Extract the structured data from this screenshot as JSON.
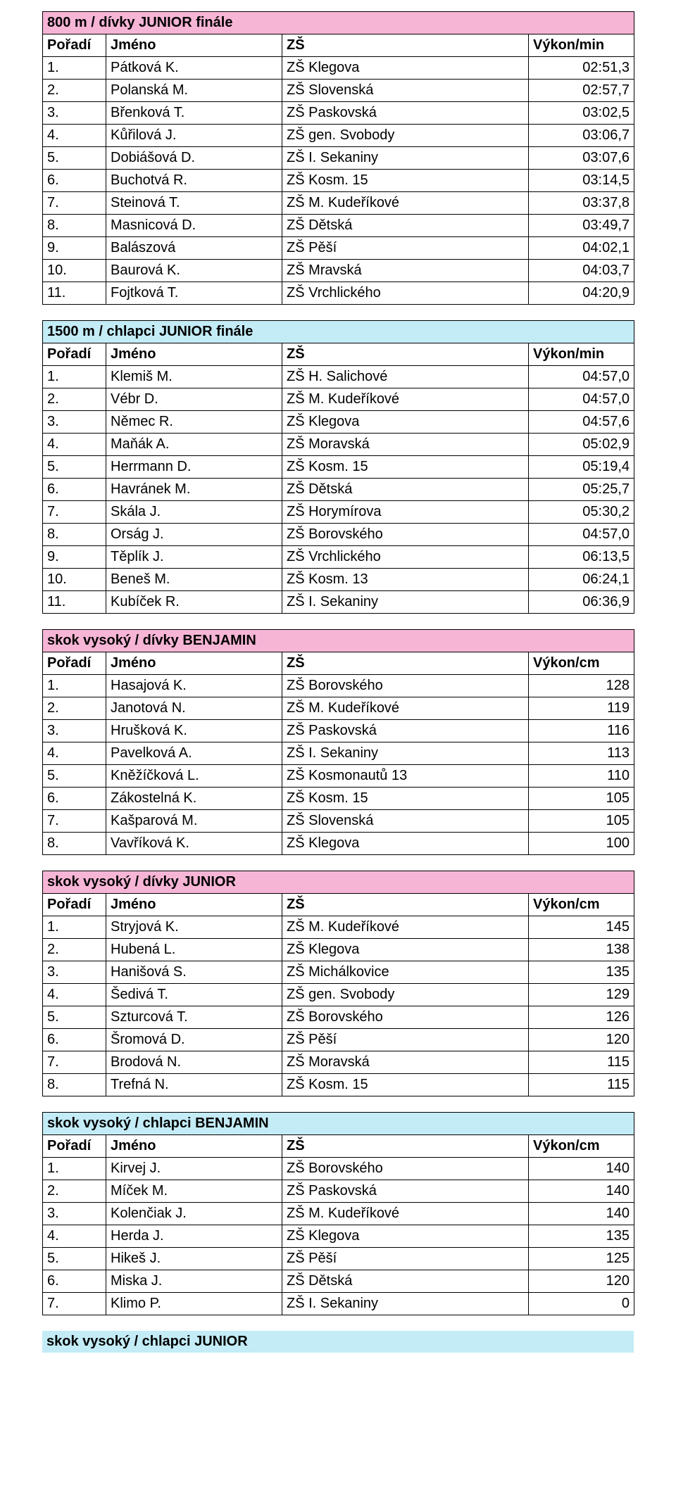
{
  "colors": {
    "pink": "#f7b5d6",
    "blue": "#c3ecf6",
    "white": "#ffffff",
    "black": "#000000"
  },
  "labels": {
    "rank": "Pořadí",
    "name": "Jméno",
    "school": "ZŠ",
    "perf_min": "Výkon/min",
    "perf_cm": "Výkon/cm"
  },
  "sections": [
    {
      "title": "800 m / dívky JUNIOR finále",
      "title_bg": "#f7b5d6",
      "perf_label": "Výkon/min",
      "rows": [
        {
          "r": "1.",
          "n": "Pátková K.",
          "s": "ZŠ Klegova",
          "p": "02:51,3"
        },
        {
          "r": "2.",
          "n": "Polanská M.",
          "s": "ZŠ Slovenská",
          "p": "02:57,7"
        },
        {
          "r": "3.",
          "n": "Břenková T.",
          "s": "ZŠ Paskovská",
          "p": "03:02,5"
        },
        {
          "r": "4.",
          "n": "Kůřilová J.",
          "s": "ZŠ gen. Svobody",
          "p": "03:06,7"
        },
        {
          "r": "5.",
          "n": "Dobiášová D.",
          "s": "ZŠ I. Sekaniny",
          "p": "03:07,6"
        },
        {
          "r": "6.",
          "n": "Buchotvá R.",
          "s": "ZŠ Kosm. 15",
          "p": "03:14,5"
        },
        {
          "r": "7.",
          "n": "Steinová T.",
          "s": "ZŠ M. Kudeříkové",
          "p": "03:37,8"
        },
        {
          "r": "8.",
          "n": "Masnicová D.",
          "s": "ZŠ Dětská",
          "p": "03:49,7"
        },
        {
          "r": "9.",
          "n": "Balászová",
          "s": "ZŠ Pěší",
          "p": "04:02,1"
        },
        {
          "r": "10.",
          "n": "Baurová K.",
          "s": "ZŠ Mravská",
          "p": "04:03,7"
        },
        {
          "r": "11.",
          "n": "Fojtková T.",
          "s": "ZŠ Vrchlického",
          "p": "04:20,9"
        }
      ]
    },
    {
      "title": "1500 m / chlapci JUNIOR finále",
      "title_bg": "#c3ecf6",
      "perf_label": "Výkon/min",
      "rows": [
        {
          "r": "1.",
          "n": "Klemiš M.",
          "s": "ZŠ H. Salichové",
          "p": "04:57,0"
        },
        {
          "r": "2.",
          "n": "Vébr D.",
          "s": "ZŠ M. Kudeříkové",
          "p": "04:57,0"
        },
        {
          "r": "3.",
          "n": "Němec R.",
          "s": "ZŠ Klegova",
          "p": "04:57,6"
        },
        {
          "r": "4.",
          "n": "Maňák A.",
          "s": "ZŠ Moravská",
          "p": "05:02,9"
        },
        {
          "r": "5.",
          "n": "Herrmann D.",
          "s": "ZŠ Kosm. 15",
          "p": "05:19,4"
        },
        {
          "r": "6.",
          "n": "Havránek M.",
          "s": "ZŠ Dětská",
          "p": "05:25,7"
        },
        {
          "r": "7.",
          "n": "Skála J.",
          "s": "ZŠ Horymírova",
          "p": "05:30,2"
        },
        {
          "r": "8.",
          "n": "Orság J.",
          "s": "ZŠ Borovského",
          "p": "04:57,0"
        },
        {
          "r": "9.",
          "n": "Těplík J.",
          "s": "ZŠ Vrchlického",
          "p": "06:13,5"
        },
        {
          "r": "10.",
          "n": "Beneš M.",
          "s": "ZŠ Kosm. 13",
          "p": "06:24,1"
        },
        {
          "r": "11.",
          "n": "Kubíček R.",
          "s": "ZŠ I. Sekaniny",
          "p": "06:36,9"
        }
      ]
    },
    {
      "title": "skok vysoký / dívky BENJAMIN",
      "title_bg": "#f7b5d6",
      "perf_label": "Výkon/cm",
      "rows": [
        {
          "r": "1.",
          "n": "Hasajová K.",
          "s": "ZŠ Borovského",
          "p": "128"
        },
        {
          "r": "2.",
          "n": "Janotová N.",
          "s": "ZŠ M. Kudeříkové",
          "p": "119"
        },
        {
          "r": "3.",
          "n": "Hrušková K.",
          "s": "ZŠ Paskovská",
          "p": "116"
        },
        {
          "r": "4.",
          "n": "Pavelková A.",
          "s": "ZŠ I. Sekaniny",
          "p": "113"
        },
        {
          "r": "5.",
          "n": "Kněžíčková L.",
          "s": "ZŠ Kosmonautů 13",
          "p": "110"
        },
        {
          "r": "6.",
          "n": "Zákostelná K.",
          "s": "ZŠ Kosm. 15",
          "p": "105"
        },
        {
          "r": "7.",
          "n": "Kašparová M.",
          "s": "ZŠ Slovenská",
          "p": "105"
        },
        {
          "r": "8.",
          "n": "Vavříková K.",
          "s": "ZŠ Klegova",
          "p": "100"
        }
      ]
    },
    {
      "title": "skok vysoký / dívky JUNIOR",
      "title_bg": "#f7b5d6",
      "perf_label": "Výkon/cm",
      "rows": [
        {
          "r": "1.",
          "n": "Stryjová K.",
          "s": "ZŠ M. Kudeříkové",
          "p": "145"
        },
        {
          "r": "2.",
          "n": "Hubená L.",
          "s": "ZŠ Klegova",
          "p": "138"
        },
        {
          "r": "3.",
          "n": "Hanišová S.",
          "s": "ZŠ Michálkovice",
          "p": "135"
        },
        {
          "r": "4.",
          "n": "Šedivá T.",
          "s": "ZŠ gen. Svobody",
          "p": "129"
        },
        {
          "r": "5.",
          "n": "Szturcová T.",
          "s": "ZŠ Borovského",
          "p": "126"
        },
        {
          "r": "6.",
          "n": "Šromová D.",
          "s": "ZŠ Pěší",
          "p": "120"
        },
        {
          "r": "7.",
          "n": "Brodová N.",
          "s": "ZŠ Moravská",
          "p": "115"
        },
        {
          "r": "8.",
          "n": "Trefná N.",
          "s": "ZŠ Kosm. 15",
          "p": "115"
        }
      ]
    },
    {
      "title": "skok vysoký / chlapci BENJAMIN",
      "title_bg": "#c3ecf6",
      "perf_label": "Výkon/cm",
      "rows": [
        {
          "r": "1.",
          "n": "Kirvej J.",
          "s": "ZŠ Borovského",
          "p": "140"
        },
        {
          "r": "2.",
          "n": "Míček M.",
          "s": "ZŠ Paskovská",
          "p": "140"
        },
        {
          "r": "3.",
          "n": "Kolenčiak J.",
          "s": "ZŠ M. Kudeříkové",
          "p": "140"
        },
        {
          "r": "4.",
          "n": "Herda J.",
          "s": "ZŠ Klegova",
          "p": "135"
        },
        {
          "r": "5.",
          "n": "Hikeš J.",
          "s": "ZŠ Pěší",
          "p": "125"
        },
        {
          "r": "6.",
          "n": "Miska J.",
          "s": "ZŠ Dětská",
          "p": "120"
        },
        {
          "r": "7.",
          "n": "Klimo P.",
          "s": "ZŠ I. Sekaniny",
          "p": "0"
        }
      ]
    }
  ],
  "trailing_title": "skok vysoký / chlapci JUNIOR",
  "trailing_bg": "#c3ecf6"
}
